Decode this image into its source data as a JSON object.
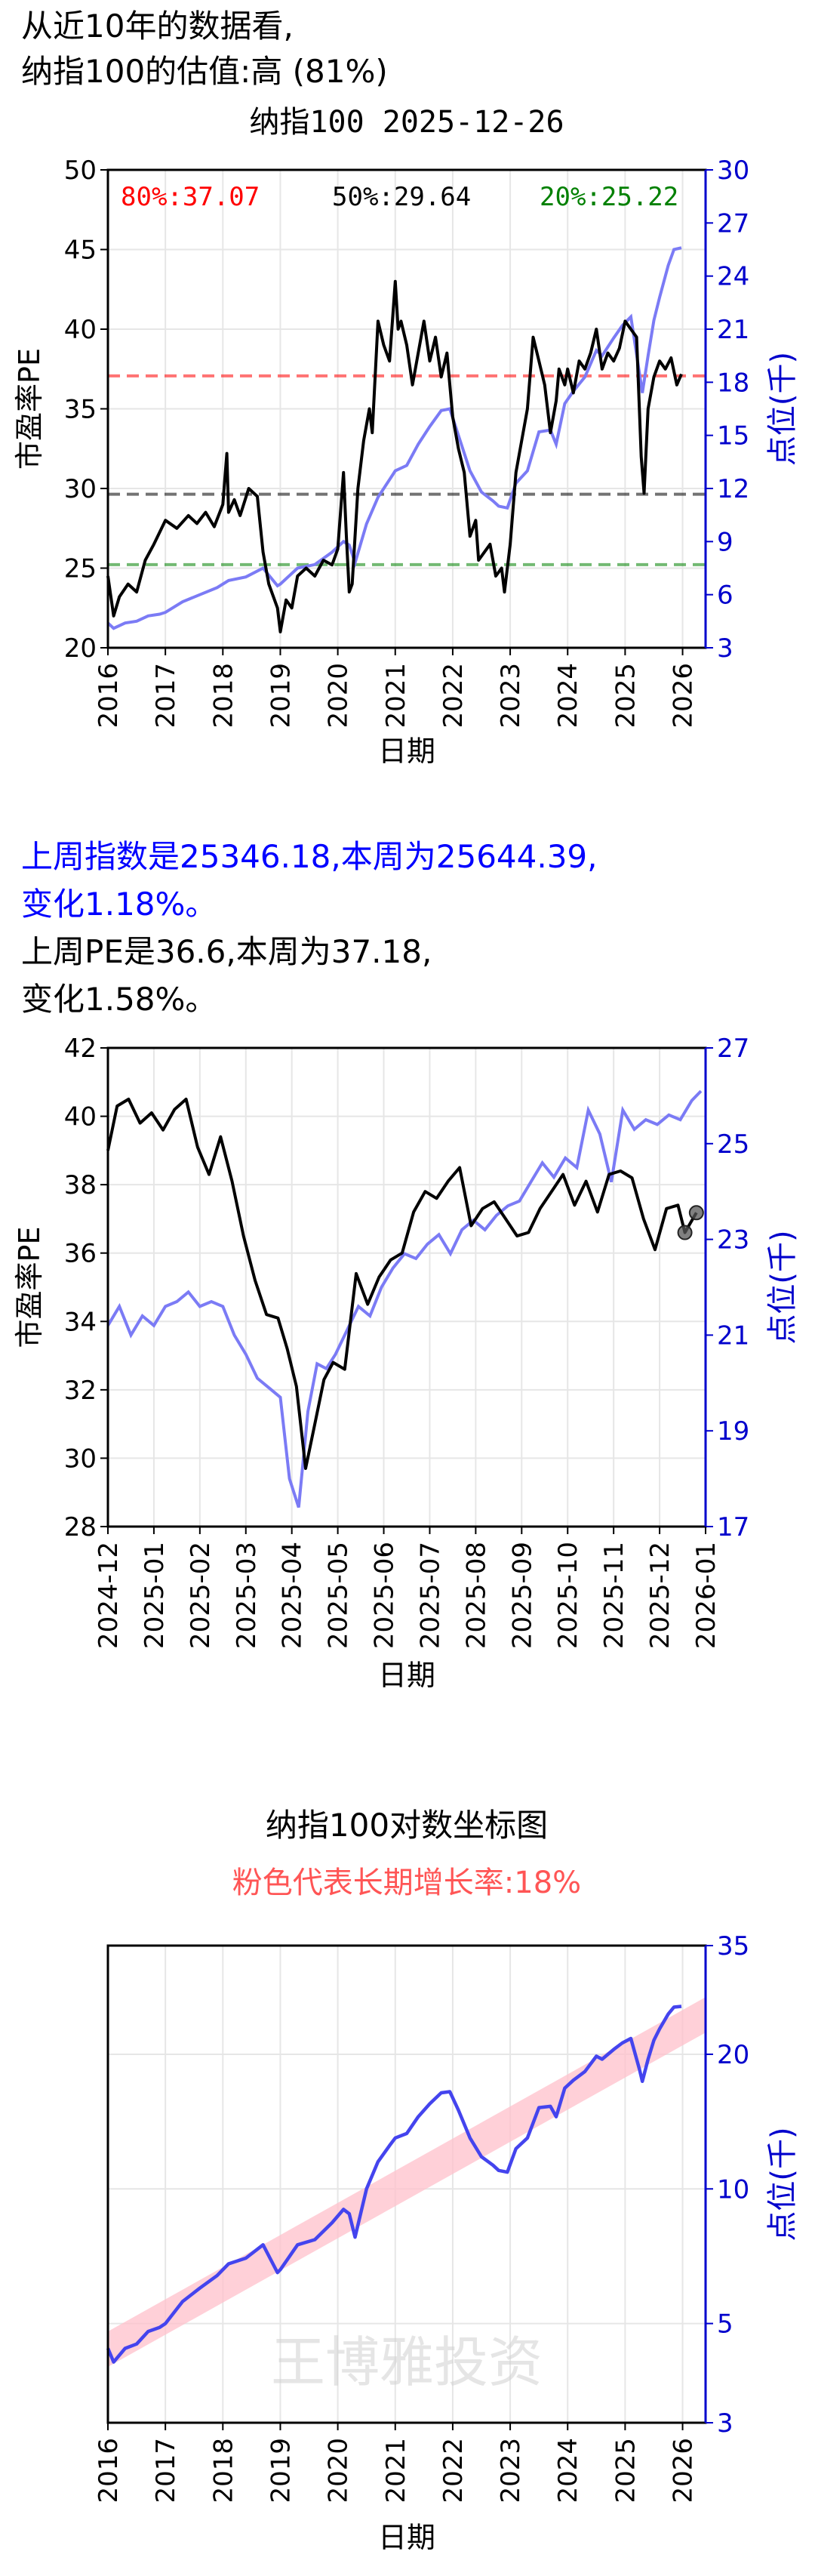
{
  "header": {
    "line1": "从近10年的数据看,",
    "line2": "纳指100的估值:高 (81%)"
  },
  "summary": {
    "index_change": "上周指数是25346.18,本周为25644.39,",
    "index_change_pct": "变化1.18%。",
    "pe_change": "上周PE是36.6,本周为37.18,",
    "pe_change_pct": "变化1.58%。"
  },
  "colors": {
    "pe": "#000000",
    "index": "#7b7bf5",
    "index_strong": "#4444ee",
    "axis_right": "#0000cc",
    "p80": "#ff0000",
    "p50": "#000000",
    "p20": "#008000",
    "band": "#ffc0cb",
    "highlight_text": "#0000ff",
    "growth_title": "#ff5555"
  },
  "chart_data": [
    {
      "id": "pe_10y",
      "type": "line",
      "title": "纳指100 2025-12-26",
      "xlabel": "日期",
      "ylabel": "市盈率PE",
      "y2label": "点位(千)",
      "ylim": [
        20,
        50
      ],
      "y2lim": [
        3,
        30
      ],
      "xlim": [
        2016.0,
        2026.4
      ],
      "yticks": [
        20,
        25,
        30,
        35,
        40,
        45,
        50
      ],
      "y2ticks": [
        3,
        6,
        9,
        12,
        15,
        18,
        21,
        24,
        27,
        30
      ],
      "xticks": [
        "2016",
        "2017",
        "2018",
        "2019",
        "2020",
        "2021",
        "2022",
        "2023",
        "2024",
        "2025",
        "2026"
      ],
      "grid": true,
      "percentiles": [
        {
          "label": "80%:37.07",
          "value": 37.07,
          "color": "#ff0000"
        },
        {
          "label": "50%:29.64",
          "value": 29.64,
          "color": "#000000"
        },
        {
          "label": "20%:25.22",
          "value": 25.22,
          "color": "#008000"
        }
      ],
      "series": [
        {
          "axis": "left",
          "x": [
            2016.0,
            2016.1,
            2016.2,
            2016.35,
            2016.5,
            2016.65,
            2016.8,
            2017.0,
            2017.2,
            2017.4,
            2017.55,
            2017.7,
            2017.85,
            2018.0,
            2018.07,
            2018.1,
            2018.2,
            2018.3,
            2018.45,
            2018.6,
            2018.7,
            2018.8,
            2018.95,
            2019.0,
            2019.1,
            2019.2,
            2019.3,
            2019.45,
            2019.6,
            2019.75,
            2019.9,
            2020.0,
            2020.1,
            2020.15,
            2020.2,
            2020.25,
            2020.35,
            2020.45,
            2020.55,
            2020.6,
            2020.7,
            2020.8,
            2020.9,
            2021.0,
            2021.05,
            2021.1,
            2021.2,
            2021.3,
            2021.4,
            2021.5,
            2021.6,
            2021.7,
            2021.8,
            2021.9,
            2022.0,
            2022.1,
            2022.2,
            2022.3,
            2022.4,
            2022.45,
            2022.55,
            2022.65,
            2022.75,
            2022.85,
            2022.9,
            2023.0,
            2023.1,
            2023.2,
            2023.3,
            2023.4,
            2023.5,
            2023.6,
            2023.7,
            2023.8,
            2023.85,
            2023.95,
            2024.0,
            2024.1,
            2024.2,
            2024.3,
            2024.4,
            2024.5,
            2024.6,
            2024.7,
            2024.8,
            2024.9,
            2025.0,
            2025.1,
            2025.2,
            2025.28,
            2025.33,
            2025.4,
            2025.5,
            2025.6,
            2025.7,
            2025.8,
            2025.9,
            2025.98
          ],
          "y": [
            24.5,
            22.0,
            23.2,
            24.0,
            23.5,
            25.5,
            26.5,
            28.0,
            27.5,
            28.3,
            27.8,
            28.5,
            27.6,
            29.0,
            32.2,
            28.5,
            29.3,
            28.3,
            30.0,
            29.5,
            26.0,
            24.0,
            22.5,
            21.0,
            23.0,
            22.5,
            24.5,
            25.0,
            24.5,
            25.5,
            25.2,
            26.2,
            31.0,
            27.0,
            23.5,
            24.0,
            30.0,
            33.0,
            35.0,
            33.5,
            40.5,
            39.0,
            38.0,
            43.0,
            40.0,
            40.5,
            39.0,
            36.5,
            38.5,
            40.5,
            38.0,
            39.5,
            37.0,
            38.5,
            34.5,
            32.5,
            31.0,
            27.0,
            28.0,
            25.5,
            26.0,
            26.5,
            24.5,
            25.0,
            23.5,
            26.5,
            31.0,
            33.0,
            35.0,
            39.5,
            38.0,
            36.5,
            33.5,
            35.5,
            37.5,
            36.5,
            37.5,
            36.0,
            38.0,
            37.5,
            38.5,
            40.0,
            37.5,
            38.5,
            38.0,
            38.8,
            40.5,
            40.0,
            39.5,
            32.0,
            29.7,
            35.0,
            37.0,
            38.0,
            37.5,
            38.2,
            36.5,
            37.18
          ],
          "name": ""
        },
        {
          "axis": "right",
          "x": [
            2016.0,
            2016.1,
            2016.3,
            2016.5,
            2016.7,
            2016.9,
            2017.0,
            2017.3,
            2017.6,
            2017.9,
            2018.1,
            2018.4,
            2018.7,
            2018.95,
            2019.0,
            2019.3,
            2019.6,
            2019.9,
            2020.1,
            2020.2,
            2020.3,
            2020.5,
            2020.7,
            2020.9,
            2021.0,
            2021.2,
            2021.4,
            2021.6,
            2021.8,
            2021.95,
            2022.1,
            2022.3,
            2022.5,
            2022.7,
            2022.8,
            2022.95,
            2023.1,
            2023.3,
            2023.5,
            2023.7,
            2023.8,
            2023.95,
            2024.1,
            2024.3,
            2024.5,
            2024.6,
            2024.8,
            2024.95,
            2025.1,
            2025.25,
            2025.3,
            2025.4,
            2025.5,
            2025.6,
            2025.75,
            2025.85,
            2025.98
          ],
          "y": [
            4.4,
            4.1,
            4.4,
            4.5,
            4.8,
            4.9,
            5.0,
            5.6,
            6.0,
            6.4,
            6.8,
            7.0,
            7.5,
            6.5,
            6.6,
            7.5,
            7.7,
            8.4,
            9.0,
            8.8,
            7.8,
            10.0,
            11.5,
            12.5,
            13.0,
            13.3,
            14.5,
            15.5,
            16.4,
            16.5,
            15.0,
            13.0,
            11.8,
            11.3,
            11.0,
            10.9,
            12.3,
            13.0,
            15.2,
            15.3,
            14.5,
            16.8,
            17.5,
            18.3,
            19.8,
            19.5,
            20.5,
            21.2,
            21.7,
            18.5,
            17.4,
            19.5,
            21.5,
            22.8,
            24.6,
            25.5,
            25.6
          ],
          "name": ""
        }
      ]
    },
    {
      "id": "pe_recent",
      "type": "line",
      "title": "",
      "xlabel": "日期",
      "ylabel": "市盈率PE",
      "y2label": "点位(千)",
      "ylim": [
        28,
        42
      ],
      "y2lim": [
        17,
        27
      ],
      "xlim": [
        0,
        13.0
      ],
      "yticks": [
        28,
        30,
        32,
        34,
        36,
        38,
        40,
        42
      ],
      "y2ticks": [
        17,
        19,
        21,
        23,
        25,
        27
      ],
      "xticks": [
        "2024-12",
        "2025-01",
        "2025-02",
        "2025-03",
        "2025-04",
        "2025-05",
        "2025-06",
        "2025-07",
        "2025-08",
        "2025-09",
        "2025-10",
        "2025-11",
        "2025-12",
        "2026-01"
      ],
      "grid": true,
      "highlight_points": [
        {
          "series": 0,
          "x": 12.55,
          "y": 36.6
        },
        {
          "series": 0,
          "x": 12.8,
          "y": 37.18
        }
      ],
      "series": [
        {
          "axis": "left",
          "x": [
            0.0,
            0.2,
            0.45,
            0.7,
            0.95,
            1.2,
            1.45,
            1.7,
            1.95,
            2.2,
            2.45,
            2.7,
            2.95,
            3.2,
            3.45,
            3.7,
            3.9,
            4.1,
            4.3,
            4.5,
            4.7,
            4.9,
            5.15,
            5.4,
            5.65,
            5.9,
            6.15,
            6.4,
            6.65,
            6.9,
            7.15,
            7.4,
            7.65,
            7.9,
            8.15,
            8.4,
            8.65,
            8.9,
            9.15,
            9.4,
            9.65,
            9.9,
            10.15,
            10.4,
            10.65,
            10.9,
            11.15,
            11.4,
            11.65,
            11.9,
            12.15,
            12.4,
            12.55,
            12.8
          ],
          "y": [
            39.0,
            40.3,
            40.5,
            39.8,
            40.1,
            39.6,
            40.2,
            40.5,
            39.1,
            38.3,
            39.4,
            38.1,
            36.5,
            35.2,
            34.2,
            34.1,
            33.2,
            32.1,
            29.7,
            31.0,
            32.3,
            32.8,
            32.6,
            35.4,
            34.5,
            35.3,
            35.8,
            36.0,
            37.2,
            37.8,
            37.6,
            38.1,
            38.5,
            36.8,
            37.3,
            37.5,
            37.0,
            36.5,
            36.6,
            37.3,
            37.8,
            38.3,
            37.4,
            38.1,
            37.2,
            38.3,
            38.4,
            38.2,
            37.0,
            36.1,
            37.3,
            37.4,
            36.6,
            37.18
          ],
          "name": ""
        },
        {
          "axis": "right",
          "x": [
            0.0,
            0.25,
            0.5,
            0.75,
            1.0,
            1.25,
            1.5,
            1.75,
            2.0,
            2.25,
            2.5,
            2.75,
            3.0,
            3.25,
            3.5,
            3.75,
            3.95,
            4.15,
            4.35,
            4.55,
            4.75,
            4.95,
            5.2,
            5.45,
            5.7,
            5.95,
            6.2,
            6.45,
            6.7,
            6.95,
            7.2,
            7.45,
            7.7,
            7.95,
            8.2,
            8.45,
            8.7,
            8.95,
            9.2,
            9.45,
            9.7,
            9.95,
            10.2,
            10.45,
            10.7,
            10.95,
            11.2,
            11.45,
            11.7,
            11.95,
            12.2,
            12.45,
            12.7,
            12.9
          ],
          "y": [
            21.2,
            21.6,
            21.0,
            21.4,
            21.2,
            21.6,
            21.7,
            21.9,
            21.6,
            21.7,
            21.6,
            21.0,
            20.6,
            20.1,
            19.9,
            19.7,
            18.0,
            17.4,
            19.4,
            20.4,
            20.3,
            20.6,
            21.1,
            21.6,
            21.4,
            22.0,
            22.4,
            22.7,
            22.6,
            22.9,
            23.1,
            22.7,
            23.2,
            23.4,
            23.2,
            23.5,
            23.7,
            23.8,
            24.2,
            24.6,
            24.3,
            24.7,
            24.5,
            25.7,
            25.2,
            24.2,
            25.7,
            25.3,
            25.5,
            25.4,
            25.6,
            25.5,
            25.9,
            26.1
          ],
          "name": ""
        }
      ]
    },
    {
      "id": "log_chart",
      "type": "line",
      "title": "纳指100对数坐标图",
      "subtitle": "粉色代表长期增长率:18%",
      "xlabel": "日期",
      "y2label": "点位(千)",
      "y2scale": "log",
      "y2lim": [
        3,
        35
      ],
      "y2ticks": [
        3,
        5,
        10,
        20,
        35
      ],
      "xlim": [
        2016.0,
        2026.4
      ],
      "xticks": [
        "2016",
        "2017",
        "2018",
        "2019",
        "2020",
        "2021",
        "2022",
        "2023",
        "2024",
        "2025",
        "2026"
      ],
      "grid": true,
      "watermark": "王博雅投资",
      "growth_band": {
        "rate": 0.18,
        "x0": 2016.0,
        "x1": 2026.4,
        "y0_low": 4.0,
        "y0_high": 4.8
      },
      "series": [
        {
          "axis": "right",
          "x": [
            2016.0,
            2016.1,
            2016.3,
            2016.5,
            2016.7,
            2016.9,
            2017.0,
            2017.3,
            2017.6,
            2017.9,
            2018.1,
            2018.4,
            2018.7,
            2018.95,
            2019.0,
            2019.3,
            2019.6,
            2019.9,
            2020.1,
            2020.2,
            2020.3,
            2020.5,
            2020.7,
            2020.9,
            2021.0,
            2021.2,
            2021.4,
            2021.6,
            2021.8,
            2021.95,
            2022.1,
            2022.3,
            2022.5,
            2022.7,
            2022.8,
            2022.95,
            2023.1,
            2023.3,
            2023.5,
            2023.7,
            2023.8,
            2023.95,
            2024.1,
            2024.3,
            2024.5,
            2024.6,
            2024.8,
            2024.95,
            2025.1,
            2025.25,
            2025.3,
            2025.4,
            2025.5,
            2025.6,
            2025.75,
            2025.85,
            2025.98
          ],
          "y": [
            4.4,
            4.1,
            4.4,
            4.5,
            4.8,
            4.9,
            5.0,
            5.6,
            6.0,
            6.4,
            6.8,
            7.0,
            7.5,
            6.5,
            6.6,
            7.5,
            7.7,
            8.4,
            9.0,
            8.8,
            7.8,
            10.0,
            11.5,
            12.5,
            13.0,
            13.3,
            14.5,
            15.5,
            16.4,
            16.5,
            15.0,
            13.0,
            11.8,
            11.3,
            11.0,
            10.9,
            12.3,
            13.0,
            15.2,
            15.3,
            14.5,
            16.8,
            17.5,
            18.3,
            19.8,
            19.5,
            20.5,
            21.2,
            21.7,
            18.5,
            17.4,
            19.5,
            21.5,
            22.8,
            24.6,
            25.5,
            25.6
          ],
          "name": ""
        }
      ]
    }
  ]
}
